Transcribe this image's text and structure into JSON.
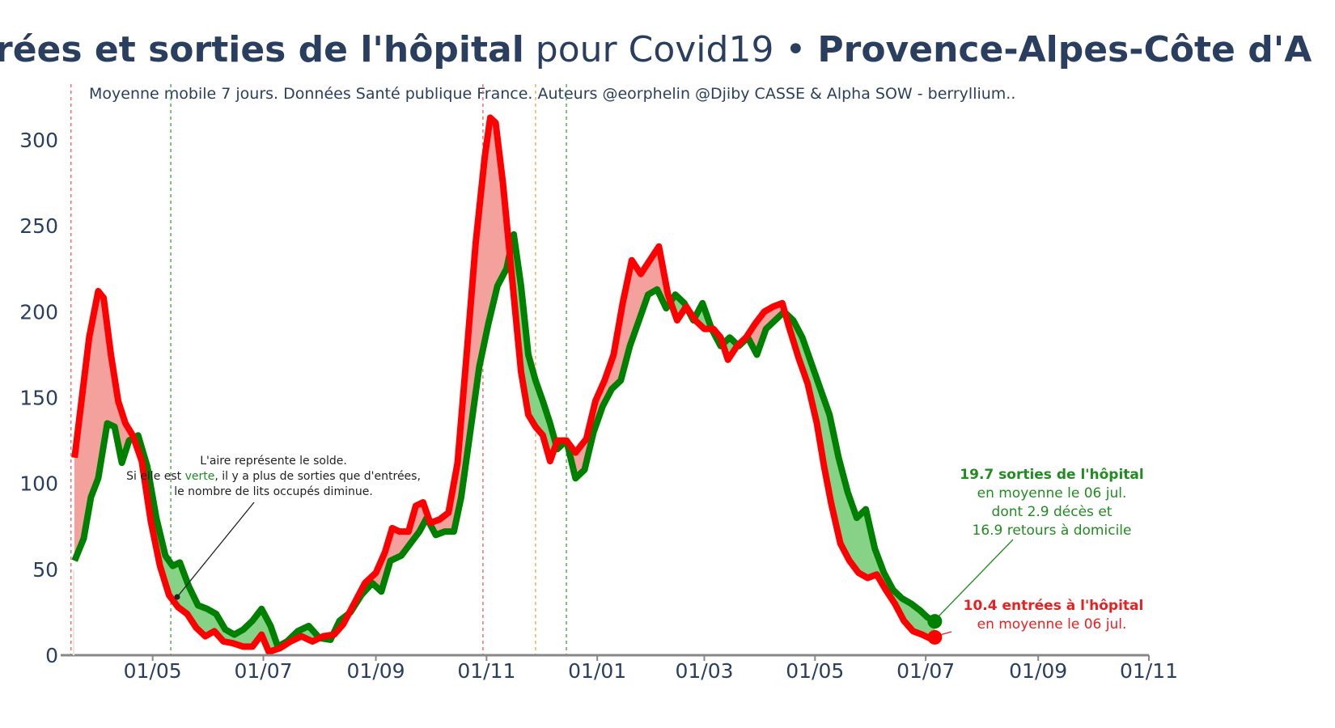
{
  "title": {
    "part1": "rées et sorties de l'hôpital",
    "part2": " pour Covid19 • ",
    "part3": "Provence-Alpes-Côte d'A"
  },
  "subtitle": "Moyenne mobile 7 jours. Données Santé publique France. Auteurs @eorphelin @Djiby CASSE & Alpha SOW - berryllium..",
  "note": {
    "line1": "L'aire représente le solde.",
    "line2_pre": "Si elle est ",
    "line2_green": "verte",
    "line2_post": ", il y a plus de sorties que d'entrées,",
    "line3": "le nombre de lits occupés diminue."
  },
  "annotation_green": {
    "line1": "19.7 sorties de l'hôpital",
    "line2": "en moyenne le 06 jul.",
    "line3": "dont 2.9 décès et",
    "line4": "16.9 retours à domicile"
  },
  "annotation_red": {
    "line1": "10.4 entrées à l'hôpital",
    "line2": "en moyenne le 06 jul."
  },
  "colors": {
    "entries": "#ff0000",
    "exits": "#008000",
    "fill_red": "#f4a09c",
    "fill_green": "#86d286",
    "text": "#2a3f5f",
    "ann_green": "#228b22",
    "ann_red": "#e82020"
  },
  "chart_data": {
    "type": "line",
    "x_axis": {
      "type": "date",
      "range": [
        "2020-03-18",
        "2021-11-01"
      ],
      "tick_labels": [
        "01/05",
        "01/07",
        "01/09",
        "01/11",
        "01/01",
        "01/03",
        "01/05",
        "01/07",
        "01/09",
        "01/11"
      ],
      "tick_dates": [
        "2020-05-01",
        "2020-07-01",
        "2020-09-01",
        "2020-11-01",
        "2021-01-01",
        "2021-03-01",
        "2021-05-01",
        "2021-07-01",
        "2021-09-01",
        "2021-11-01"
      ]
    },
    "y_axis": {
      "range": [
        0,
        325
      ],
      "tick_values": [
        0,
        50,
        100,
        150,
        200,
        250,
        300
      ]
    },
    "vertical_lines": [
      {
        "date": "2020-03-17",
        "color": "#e06060"
      },
      {
        "date": "2020-05-11",
        "color": "#3aa03a"
      },
      {
        "date": "2020-10-30",
        "color": "#e06060"
      },
      {
        "date": "2020-11-28",
        "color": "#f0a040"
      },
      {
        "date": "2020-12-15",
        "color": "#3aa03a"
      }
    ],
    "series": [
      {
        "key": "entries",
        "points": [
          [
            "2020-03-19",
            115
          ],
          [
            "2020-03-23",
            150
          ],
          [
            "2020-03-27",
            185
          ],
          [
            "2020-04-01",
            212
          ],
          [
            "2020-04-04",
            208
          ],
          [
            "2020-04-08",
            175
          ],
          [
            "2020-04-12",
            148
          ],
          [
            "2020-04-16",
            135
          ],
          [
            "2020-04-20",
            128
          ],
          [
            "2020-04-25",
            113
          ],
          [
            "2020-04-30",
            78
          ],
          [
            "2020-05-05",
            52
          ],
          [
            "2020-05-10",
            35
          ],
          [
            "2020-05-15",
            28
          ],
          [
            "2020-05-20",
            24
          ],
          [
            "2020-05-25",
            16
          ],
          [
            "2020-05-30",
            11
          ],
          [
            "2020-06-04",
            14
          ],
          [
            "2020-06-09",
            8
          ],
          [
            "2020-06-14",
            7
          ],
          [
            "2020-06-20",
            5
          ],
          [
            "2020-06-25",
            5
          ],
          [
            "2020-06-30",
            12
          ],
          [
            "2020-07-04",
            2
          ],
          [
            "2020-07-10",
            4
          ],
          [
            "2020-07-16",
            8
          ],
          [
            "2020-07-22",
            11
          ],
          [
            "2020-07-28",
            8
          ],
          [
            "2020-08-03",
            11
          ],
          [
            "2020-08-09",
            12
          ],
          [
            "2020-08-14",
            18
          ],
          [
            "2020-08-20",
            30
          ],
          [
            "2020-08-26",
            42
          ],
          [
            "2020-09-01",
            48
          ],
          [
            "2020-09-06",
            60
          ],
          [
            "2020-09-10",
            74
          ],
          [
            "2020-09-14",
            72
          ],
          [
            "2020-09-19",
            72
          ],
          [
            "2020-09-23",
            87
          ],
          [
            "2020-09-27",
            89
          ],
          [
            "2020-10-01",
            77
          ],
          [
            "2020-10-06",
            79
          ],
          [
            "2020-10-11",
            83
          ],
          [
            "2020-10-16",
            112
          ],
          [
            "2020-10-21",
            175
          ],
          [
            "2020-10-26",
            240
          ],
          [
            "2020-10-31",
            290
          ],
          [
            "2020-11-03",
            313
          ],
          [
            "2020-11-06",
            310
          ],
          [
            "2020-11-10",
            275
          ],
          [
            "2020-11-15",
            220
          ],
          [
            "2020-11-20",
            165
          ],
          [
            "2020-11-24",
            140
          ],
          [
            "2020-11-28",
            133
          ],
          [
            "2020-12-02",
            128
          ],
          [
            "2020-12-06",
            113
          ],
          [
            "2020-12-10",
            125
          ],
          [
            "2020-12-15",
            125
          ],
          [
            "2020-12-20",
            118
          ],
          [
            "2020-12-26",
            126
          ],
          [
            "2020-12-31",
            148
          ],
          [
            "2021-01-05",
            160
          ],
          [
            "2021-01-10",
            175
          ],
          [
            "2021-01-15",
            205
          ],
          [
            "2021-01-20",
            230
          ],
          [
            "2021-01-25",
            222
          ],
          [
            "2021-01-30",
            230
          ],
          [
            "2021-02-04",
            238
          ],
          [
            "2021-02-09",
            210
          ],
          [
            "2021-02-14",
            195
          ],
          [
            "2021-02-19",
            203
          ],
          [
            "2021-02-24",
            195
          ],
          [
            "2021-03-01",
            190
          ],
          [
            "2021-03-06",
            190
          ],
          [
            "2021-03-10",
            185
          ],
          [
            "2021-03-14",
            172
          ],
          [
            "2021-03-19",
            180
          ],
          [
            "2021-03-24",
            185
          ],
          [
            "2021-03-29",
            193
          ],
          [
            "2021-04-03",
            200
          ],
          [
            "2021-04-08",
            203
          ],
          [
            "2021-04-13",
            205
          ],
          [
            "2021-04-17",
            190
          ],
          [
            "2021-04-22",
            173
          ],
          [
            "2021-04-27",
            158
          ],
          [
            "2021-05-02",
            135
          ],
          [
            "2021-05-06",
            110
          ],
          [
            "2021-05-10",
            88
          ],
          [
            "2021-05-15",
            65
          ],
          [
            "2021-05-20",
            55
          ],
          [
            "2021-05-25",
            48
          ],
          [
            "2021-05-30",
            45
          ],
          [
            "2021-06-04",
            47
          ],
          [
            "2021-06-09",
            38
          ],
          [
            "2021-06-14",
            30
          ],
          [
            "2021-06-19",
            20
          ],
          [
            "2021-06-24",
            14
          ],
          [
            "2021-06-29",
            12
          ],
          [
            "2021-07-03",
            10
          ],
          [
            "2021-07-06",
            10.4
          ]
        ]
      },
      {
        "key": "exits",
        "points": [
          [
            "2020-03-19",
            55
          ],
          [
            "2020-03-24",
            68
          ],
          [
            "2020-03-28",
            92
          ],
          [
            "2020-04-01",
            103
          ],
          [
            "2020-04-06",
            135
          ],
          [
            "2020-04-10",
            133
          ],
          [
            "2020-04-14",
            112
          ],
          [
            "2020-04-18",
            125
          ],
          [
            "2020-04-23",
            128
          ],
          [
            "2020-04-28",
            110
          ],
          [
            "2020-05-03",
            80
          ],
          [
            "2020-05-08",
            58
          ],
          [
            "2020-05-12",
            52
          ],
          [
            "2020-05-16",
            54
          ],
          [
            "2020-05-21",
            40
          ],
          [
            "2020-05-26",
            29
          ],
          [
            "2020-05-31",
            27
          ],
          [
            "2020-06-05",
            24
          ],
          [
            "2020-06-10",
            15
          ],
          [
            "2020-06-15",
            12
          ],
          [
            "2020-06-20",
            15
          ],
          [
            "2020-06-25",
            20
          ],
          [
            "2020-06-30",
            27
          ],
          [
            "2020-07-05",
            17
          ],
          [
            "2020-07-09",
            5
          ],
          [
            "2020-07-14",
            8
          ],
          [
            "2020-07-20",
            14
          ],
          [
            "2020-07-26",
            17
          ],
          [
            "2020-08-01",
            10
          ],
          [
            "2020-08-07",
            9
          ],
          [
            "2020-08-12",
            20
          ],
          [
            "2020-08-18",
            25
          ],
          [
            "2020-08-24",
            35
          ],
          [
            "2020-08-30",
            42
          ],
          [
            "2020-09-04",
            37
          ],
          [
            "2020-09-09",
            55
          ],
          [
            "2020-09-15",
            58
          ],
          [
            "2020-09-20",
            65
          ],
          [
            "2020-09-25",
            72
          ],
          [
            "2020-09-29",
            80
          ],
          [
            "2020-10-04",
            70
          ],
          [
            "2020-10-09",
            72
          ],
          [
            "2020-10-14",
            72
          ],
          [
            "2020-10-18",
            92
          ],
          [
            "2020-10-23",
            130
          ],
          [
            "2020-10-28",
            168
          ],
          [
            "2020-11-02",
            193
          ],
          [
            "2020-11-07",
            215
          ],
          [
            "2020-11-12",
            225
          ],
          [
            "2020-11-16",
            245
          ],
          [
            "2020-11-20",
            215
          ],
          [
            "2020-11-24",
            175
          ],
          [
            "2020-11-28",
            160
          ],
          [
            "2020-12-02",
            148
          ],
          [
            "2020-12-06",
            135
          ],
          [
            "2020-12-10",
            120
          ],
          [
            "2020-12-15",
            125
          ],
          [
            "2020-12-20",
            103
          ],
          [
            "2020-12-25",
            108
          ],
          [
            "2020-12-30",
            130
          ],
          [
            "2021-01-04",
            145
          ],
          [
            "2021-01-09",
            155
          ],
          [
            "2021-01-14",
            160
          ],
          [
            "2021-01-19",
            180
          ],
          [
            "2021-01-24",
            195
          ],
          [
            "2021-01-29",
            210
          ],
          [
            "2021-02-03",
            213
          ],
          [
            "2021-02-08",
            202
          ],
          [
            "2021-02-13",
            210
          ],
          [
            "2021-02-18",
            205
          ],
          [
            "2021-02-23",
            195
          ],
          [
            "2021-02-28",
            205
          ],
          [
            "2021-03-05",
            190
          ],
          [
            "2021-03-10",
            180
          ],
          [
            "2021-03-15",
            185
          ],
          [
            "2021-03-20",
            180
          ],
          [
            "2021-03-25",
            185
          ],
          [
            "2021-03-30",
            175
          ],
          [
            "2021-04-04",
            190
          ],
          [
            "2021-04-09",
            195
          ],
          [
            "2021-04-14",
            200
          ],
          [
            "2021-04-19",
            195
          ],
          [
            "2021-04-24",
            185
          ],
          [
            "2021-04-29",
            170
          ],
          [
            "2021-05-04",
            155
          ],
          [
            "2021-05-09",
            140
          ],
          [
            "2021-05-14",
            115
          ],
          [
            "2021-05-19",
            95
          ],
          [
            "2021-05-24",
            80
          ],
          [
            "2021-05-29",
            85
          ],
          [
            "2021-06-03",
            62
          ],
          [
            "2021-06-08",
            48
          ],
          [
            "2021-06-13",
            38
          ],
          [
            "2021-06-18",
            33
          ],
          [
            "2021-06-23",
            30
          ],
          [
            "2021-06-28",
            26
          ],
          [
            "2021-07-02",
            22
          ],
          [
            "2021-07-06",
            19.7
          ]
        ]
      }
    ]
  }
}
